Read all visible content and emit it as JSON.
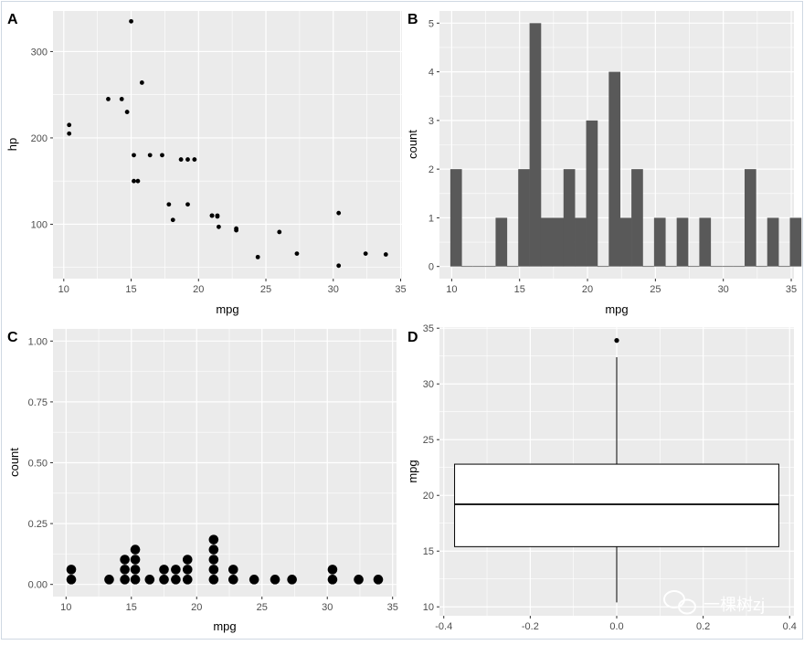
{
  "colors": {
    "panel": "#ebebeb",
    "grid": "#ffffff",
    "ink": "#000000",
    "bar": "#595959",
    "tick": "#4d4d4d",
    "frame": "#cfd8e3"
  },
  "watermark": {
    "text": "一棵树zj",
    "icon": "wechat-icon"
  },
  "chart_data": [
    {
      "tag": "A",
      "type": "scatter",
      "xlabel": "mpg",
      "ylabel": "hp",
      "xlim": [
        9.2,
        35.1
      ],
      "ylim": [
        37,
        347
      ],
      "xticks": [
        10,
        15,
        20,
        25,
        30,
        35
      ],
      "yticks": [
        100,
        200,
        300
      ],
      "points": [
        [
          21,
          110
        ],
        [
          21,
          110
        ],
        [
          22.8,
          93
        ],
        [
          21.4,
          110
        ],
        [
          18.7,
          175
        ],
        [
          18.1,
          105
        ],
        [
          14.3,
          245
        ],
        [
          24.4,
          62
        ],
        [
          22.8,
          95
        ],
        [
          19.2,
          123
        ],
        [
          17.8,
          123
        ],
        [
          16.4,
          180
        ],
        [
          17.3,
          180
        ],
        [
          15.2,
          180
        ],
        [
          10.4,
          205
        ],
        [
          10.4,
          215
        ],
        [
          14.7,
          230
        ],
        [
          32.4,
          66
        ],
        [
          30.4,
          52
        ],
        [
          33.9,
          65
        ],
        [
          21.5,
          97
        ],
        [
          15.5,
          150
        ],
        [
          15.2,
          150
        ],
        [
          13.3,
          245
        ],
        [
          19.2,
          175
        ],
        [
          27.3,
          66
        ],
        [
          26,
          91
        ],
        [
          30.4,
          113
        ],
        [
          15.8,
          264
        ],
        [
          19.7,
          175
        ],
        [
          15,
          335
        ],
        [
          21.4,
          109
        ]
      ]
    },
    {
      "tag": "B",
      "type": "bar",
      "xlabel": "mpg",
      "ylabel": "count",
      "xlim": [
        9.1,
        35.2
      ],
      "ylim": [
        -0.25,
        5.25
      ],
      "xticks": [
        10,
        15,
        20,
        25,
        30,
        35
      ],
      "yticks": [
        0,
        1,
        2,
        3,
        4,
        5
      ],
      "bins": {
        "start": 9.9,
        "width": 0.8333,
        "counts": [
          2,
          0,
          0,
          0,
          1,
          0,
          2,
          5,
          1,
          1,
          2,
          1,
          3,
          0,
          4,
          1,
          2,
          0,
          1,
          0,
          1,
          0,
          1,
          0,
          0,
          0,
          2,
          0,
          1,
          0,
          1
        ]
      }
    },
    {
      "tag": "C",
      "type": "dotplot",
      "xlabel": "mpg",
      "ylabel": "count",
      "xlim": [
        9.0,
        35.3
      ],
      "ylim": [
        -0.05,
        1.05
      ],
      "xticks": [
        10,
        15,
        20,
        25,
        30,
        35
      ],
      "yticks": [
        0,
        0.25,
        0.5,
        0.75,
        1
      ],
      "yticklabels": [
        "0.00",
        "0.25",
        "0.50",
        "0.75",
        "1.00"
      ],
      "stacks": [
        [
          10.4,
          2
        ],
        [
          13.3,
          1
        ],
        [
          14.5,
          3
        ],
        [
          15.3,
          4
        ],
        [
          16.4,
          1
        ],
        [
          17.5,
          2
        ],
        [
          18.4,
          2
        ],
        [
          19.3,
          3
        ],
        [
          21.3,
          5
        ],
        [
          22.8,
          2
        ],
        [
          24.4,
          1
        ],
        [
          26,
          1
        ],
        [
          27.3,
          1
        ],
        [
          30.4,
          2
        ],
        [
          32.4,
          1
        ],
        [
          33.9,
          1
        ]
      ],
      "stack_step": 0.041
    },
    {
      "tag": "D",
      "type": "boxplot",
      "xlabel": "",
      "ylabel": "mpg",
      "xlim": [
        -0.41,
        0.41
      ],
      "ylim": [
        9.2,
        35.1
      ],
      "xticks": [
        -0.4,
        -0.2,
        0,
        0.2,
        0.4
      ],
      "xticklabels": [
        "-0.4",
        "-0.2",
        "0.0",
        "0.2",
        "0.4"
      ],
      "yticks": [
        10,
        15,
        20,
        25,
        30,
        35
      ],
      "box": {
        "x": 0,
        "half_width": 0.375,
        "min": 10.4,
        "q1": 15.4,
        "median": 19.2,
        "q3": 22.8,
        "max": 32.4,
        "outliers": [
          33.9
        ]
      }
    }
  ]
}
